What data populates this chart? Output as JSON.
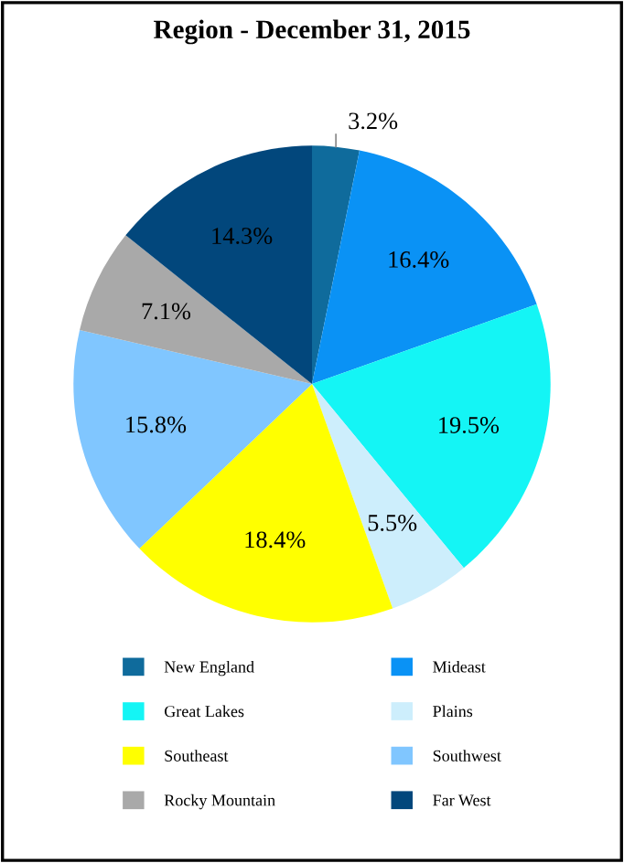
{
  "chart_data": {
    "type": "pie",
    "title": "Region - December 31, 2015",
    "categories": [
      "New England",
      "Mideast",
      "Great Lakes",
      "Plains",
      "Southeast",
      "Southwest",
      "Rocky Mountain",
      "Far West"
    ],
    "values": [
      3.2,
      16.4,
      19.5,
      5.5,
      18.4,
      15.8,
      7.1,
      14.3
    ],
    "colors": [
      "#0f6b9c",
      "#0a92f5",
      "#14f5f5",
      "#cdeefc",
      "#ffff00",
      "#80c6ff",
      "#a9a9a9",
      "#02477c"
    ],
    "value_labels": [
      "3.2%",
      "16.4%",
      "19.5%",
      "5.5%",
      "18.4%",
      "15.8%",
      "7.1%",
      "14.3%"
    ],
    "legend": "bottom"
  }
}
